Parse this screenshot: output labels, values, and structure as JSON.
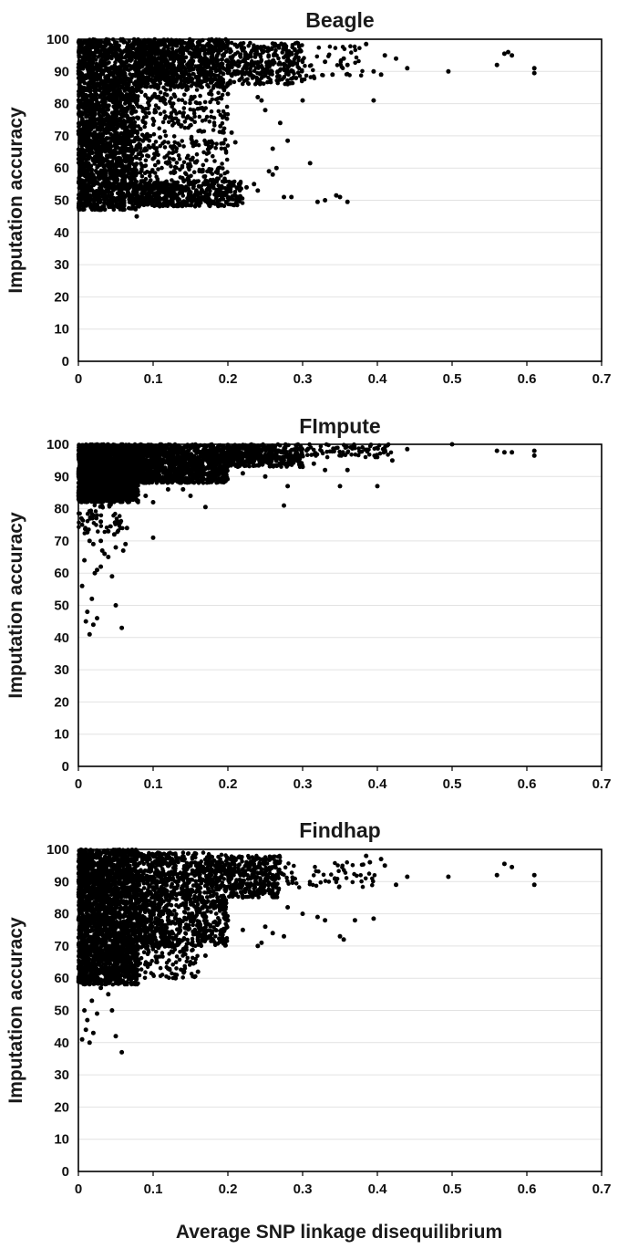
{
  "colors": {
    "marker": "#000000",
    "grid": "#e2e2e2",
    "frame": "#000000"
  },
  "shared_xlabel": "Average SNP linkage disequilibrium",
  "chart_data": [
    {
      "type": "scatter",
      "title": "Beagle",
      "xlabel": "",
      "ylabel": "Imputation accuracy",
      "xlim": [
        0,
        0.7
      ],
      "ylim": [
        0,
        100
      ],
      "xticks": [
        "0",
        "0.1",
        "0.2",
        "0.3",
        "0.4",
        "0.5",
        "0.6",
        "0.7"
      ],
      "yticks": [
        "0",
        "10",
        "20",
        "30",
        "40",
        "50",
        "60",
        "70",
        "80",
        "90",
        "100"
      ],
      "grid": true,
      "legend": "none",
      "sparse_points": [
        [
          0.385,
          98.5
        ],
        [
          0.395,
          90
        ],
        [
          0.405,
          89
        ],
        [
          0.41,
          95
        ],
        [
          0.425,
          94
        ],
        [
          0.44,
          91
        ],
        [
          0.495,
          90
        ],
        [
          0.56,
          92
        ],
        [
          0.57,
          95.5
        ],
        [
          0.575,
          96
        ],
        [
          0.58,
          95
        ],
        [
          0.61,
          91
        ],
        [
          0.61,
          89.5
        ],
        [
          0.395,
          81
        ],
        [
          0.3,
          81
        ],
        [
          0.355,
          94
        ],
        [
          0.36,
          92
        ],
        [
          0.33,
          93
        ],
        [
          0.34,
          89
        ],
        [
          0.31,
          61.5
        ],
        [
          0.33,
          50
        ],
        [
          0.345,
          51.5
        ],
        [
          0.35,
          51
        ],
        [
          0.36,
          49.5
        ],
        [
          0.32,
          49.5
        ],
        [
          0.275,
          51
        ],
        [
          0.285,
          51
        ],
        [
          0.28,
          68.5
        ],
        [
          0.27,
          74
        ],
        [
          0.265,
          60
        ],
        [
          0.26,
          58
        ],
        [
          0.255,
          59
        ],
        [
          0.245,
          81
        ],
        [
          0.24,
          82
        ],
        [
          0.25,
          78
        ],
        [
          0.26,
          66
        ],
        [
          0.205,
          71
        ],
        [
          0.21,
          68
        ],
        [
          0.215,
          55
        ],
        [
          0.225,
          54
        ],
        [
          0.235,
          55
        ],
        [
          0.24,
          53
        ],
        [
          0.078,
          45
        ],
        [
          0.06,
          47.5
        ],
        [
          0.2,
          83
        ],
        [
          0.19,
          73
        ]
      ],
      "dense_regions": [
        {
          "x": [
            0.0,
            0.08
          ],
          "y": [
            47,
            100
          ],
          "count": 2200
        },
        {
          "x": [
            0.08,
            0.2
          ],
          "y": [
            85,
            100
          ],
          "count": 900
        },
        {
          "x": [
            0.08,
            0.2
          ],
          "y": [
            48,
            85
          ],
          "count": 500
        },
        {
          "x": [
            0.08,
            0.22
          ],
          "y": [
            48,
            56
          ],
          "count": 400
        },
        {
          "x": [
            0.2,
            0.3
          ],
          "y": [
            86,
            99
          ],
          "count": 350
        },
        {
          "x": [
            0.3,
            0.38
          ],
          "y": [
            87,
            98
          ],
          "count": 40
        }
      ]
    },
    {
      "type": "scatter",
      "title": "FImpute",
      "xlabel": "",
      "ylabel": "Imputation accuracy",
      "xlim": [
        0,
        0.7
      ],
      "ylim": [
        0,
        100
      ],
      "xticks": [
        "0",
        "0.1",
        "0.2",
        "0.3",
        "0.4",
        "0.5",
        "0.6",
        "0.7"
      ],
      "yticks": [
        "0",
        "10",
        "20",
        "30",
        "40",
        "50",
        "60",
        "70",
        "80",
        "90",
        "100"
      ],
      "grid": true,
      "legend": "none",
      "sparse_points": [
        [
          0.01,
          45
        ],
        [
          0.015,
          41
        ],
        [
          0.02,
          44
        ],
        [
          0.012,
          48
        ],
        [
          0.018,
          52
        ],
        [
          0.005,
          56
        ],
        [
          0.008,
          64
        ],
        [
          0.025,
          46
        ],
        [
          0.022,
          60
        ],
        [
          0.05,
          50
        ],
        [
          0.058,
          43
        ],
        [
          0.045,
          59
        ],
        [
          0.03,
          70
        ],
        [
          0.035,
          66
        ],
        [
          0.04,
          65
        ],
        [
          0.048,
          72
        ],
        [
          0.05,
          68
        ],
        [
          0.06,
          67
        ],
        [
          0.063,
          69
        ],
        [
          0.065,
          74
        ],
        [
          0.1,
          71
        ],
        [
          0.03,
          76
        ],
        [
          0.015,
          70
        ],
        [
          0.02,
          69
        ],
        [
          0.025,
          61
        ],
        [
          0.03,
          62
        ],
        [
          0.032,
          67
        ],
        [
          0.04,
          73
        ],
        [
          0.275,
          81
        ],
        [
          0.28,
          87
        ],
        [
          0.35,
          87
        ],
        [
          0.4,
          87
        ],
        [
          0.5,
          100
        ],
        [
          0.56,
          98
        ],
        [
          0.57,
          97.5
        ],
        [
          0.58,
          97.5
        ],
        [
          0.61,
          96.5
        ],
        [
          0.61,
          98
        ],
        [
          0.44,
          98.5
        ],
        [
          0.42,
          95
        ],
        [
          0.36,
          92
        ],
        [
          0.33,
          92
        ],
        [
          0.315,
          94
        ],
        [
          0.3,
          93
        ],
        [
          0.17,
          80.5
        ],
        [
          0.15,
          84
        ],
        [
          0.14,
          86
        ],
        [
          0.1,
          82
        ],
        [
          0.09,
          84
        ],
        [
          0.12,
          86
        ],
        [
          0.22,
          91
        ],
        [
          0.25,
          90
        ]
      ],
      "dense_regions": [
        {
          "x": [
            0.0,
            0.08
          ],
          "y": [
            82,
            100
          ],
          "count": 2200
        },
        {
          "x": [
            0.08,
            0.2
          ],
          "y": [
            88,
            100
          ],
          "count": 1200
        },
        {
          "x": [
            0.2,
            0.3
          ],
          "y": [
            93,
            100
          ],
          "count": 450
        },
        {
          "x": [
            0.3,
            0.42
          ],
          "y": [
            96,
            100
          ],
          "count": 80
        },
        {
          "x": [
            0.0,
            0.06
          ],
          "y": [
            72,
            84
          ],
          "count": 80
        }
      ]
    },
    {
      "type": "scatter",
      "title": "Findhap",
      "xlabel": "Average SNP linkage disequilibrium",
      "ylabel": "Imputation accuracy",
      "xlim": [
        0,
        0.7
      ],
      "ylim": [
        0,
        100
      ],
      "xticks": [
        "0",
        "0.1",
        "0.2",
        "0.3",
        "0.4",
        "0.5",
        "0.6",
        "0.7"
      ],
      "yticks": [
        "0",
        "10",
        "20",
        "30",
        "40",
        "50",
        "60",
        "70",
        "80",
        "90",
        "100"
      ],
      "grid": true,
      "legend": "none",
      "sparse_points": [
        [
          0.005,
          41
        ],
        [
          0.01,
          44
        ],
        [
          0.015,
          40
        ],
        [
          0.02,
          43
        ],
        [
          0.012,
          47
        ],
        [
          0.008,
          50
        ],
        [
          0.018,
          53
        ],
        [
          0.025,
          49
        ],
        [
          0.03,
          57
        ],
        [
          0.045,
          50
        ],
        [
          0.05,
          42
        ],
        [
          0.058,
          37
        ],
        [
          0.04,
          55
        ],
        [
          0.385,
          98
        ],
        [
          0.39,
          96
        ],
        [
          0.405,
          97
        ],
        [
          0.41,
          95
        ],
        [
          0.425,
          89
        ],
        [
          0.44,
          91.5
        ],
        [
          0.495,
          91.5
        ],
        [
          0.56,
          92
        ],
        [
          0.57,
          95.5
        ],
        [
          0.58,
          94.5
        ],
        [
          0.61,
          92
        ],
        [
          0.61,
          89
        ],
        [
          0.395,
          78.5
        ],
        [
          0.35,
          73
        ],
        [
          0.355,
          72
        ],
        [
          0.37,
          78
        ],
        [
          0.32,
          79
        ],
        [
          0.33,
          78
        ],
        [
          0.3,
          80
        ],
        [
          0.28,
          82
        ],
        [
          0.275,
          73
        ],
        [
          0.26,
          74
        ],
        [
          0.245,
          71
        ],
        [
          0.25,
          76
        ],
        [
          0.24,
          70
        ],
        [
          0.22,
          75
        ],
        [
          0.2,
          78
        ],
        [
          0.19,
          72
        ],
        [
          0.17,
          67
        ],
        [
          0.16,
          62
        ],
        [
          0.15,
          65
        ],
        [
          0.13,
          60
        ],
        [
          0.12,
          63
        ]
      ],
      "dense_regions": [
        {
          "x": [
            0.0,
            0.08
          ],
          "y": [
            58,
            100
          ],
          "count": 2400
        },
        {
          "x": [
            0.08,
            0.2
          ],
          "y": [
            70,
            99
          ],
          "count": 1200
        },
        {
          "x": [
            0.2,
            0.27
          ],
          "y": [
            85,
            98
          ],
          "count": 350
        },
        {
          "x": [
            0.27,
            0.4
          ],
          "y": [
            88,
            96
          ],
          "count": 60
        },
        {
          "x": [
            0.06,
            0.16
          ],
          "y": [
            60,
            72
          ],
          "count": 150
        }
      ]
    }
  ]
}
